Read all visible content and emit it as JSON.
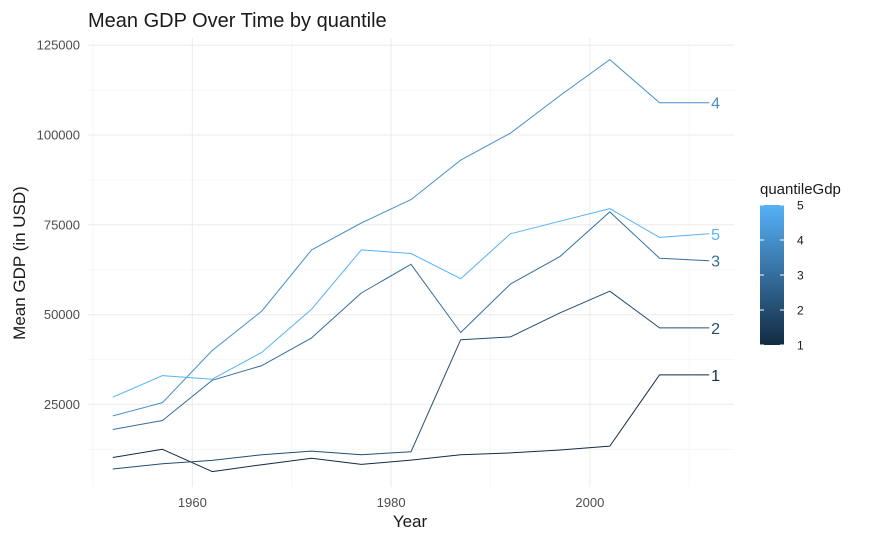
{
  "chart_data": {
    "type": "line",
    "title": "Mean GDP Over Time by quantile",
    "xlabel": "Year",
    "ylabel": "Mean GDP (in USD)",
    "xlim": [
      1949.5,
      2014.5
    ],
    "ylim": [
      2000,
      127000
    ],
    "x_ticks": [
      1960,
      1980,
      2000
    ],
    "x_tick_labels": [
      "1960",
      "1980",
      "2000"
    ],
    "y_ticks": [
      25000,
      50000,
      75000,
      100000,
      125000
    ],
    "y_tick_labels": [
      "25000",
      "50000",
      "75000",
      "100000",
      "125000"
    ],
    "grid": true,
    "x": [
      1952,
      1957,
      1962,
      1967,
      1972,
      1977,
      1982,
      1987,
      1992,
      1997,
      2002,
      2007,
      2012
    ],
    "series": [
      {
        "name": "1",
        "label": "1",
        "values": [
          10200,
          12500,
          6300,
          8200,
          10000,
          8300,
          9500,
          11000,
          11500,
          12300,
          13400,
          33200,
          33200
        ]
      },
      {
        "name": "2",
        "label": "2",
        "values": [
          7000,
          8500,
          9400,
          11000,
          12000,
          11000,
          11800,
          43000,
          43800,
          50500,
          56500,
          46300,
          46300
        ]
      },
      {
        "name": "3",
        "label": "3",
        "values": [
          18000,
          20500,
          31700,
          35800,
          43500,
          56000,
          64000,
          45000,
          58500,
          66200,
          78600,
          65700,
          65000
        ]
      },
      {
        "name": "4",
        "label": "4",
        "values": [
          21800,
          25500,
          40000,
          51000,
          68000,
          75500,
          82000,
          93000,
          100500,
          111000,
          121000,
          109000,
          109000
        ]
      },
      {
        "name": "5",
        "label": "5",
        "values": [
          27000,
          33000,
          32000,
          39500,
          51500,
          68000,
          67000,
          60000,
          72500,
          76000,
          79500,
          71500,
          72500
        ]
      }
    ],
    "legend": {
      "title": "quantileGdp",
      "placement": "right",
      "type": "colorbar",
      "min": 1,
      "max": 5,
      "ticks": [
        "1",
        "2",
        "3",
        "4",
        "5"
      ],
      "color_low": "#132b43",
      "color_high": "#56b1f7"
    }
  }
}
